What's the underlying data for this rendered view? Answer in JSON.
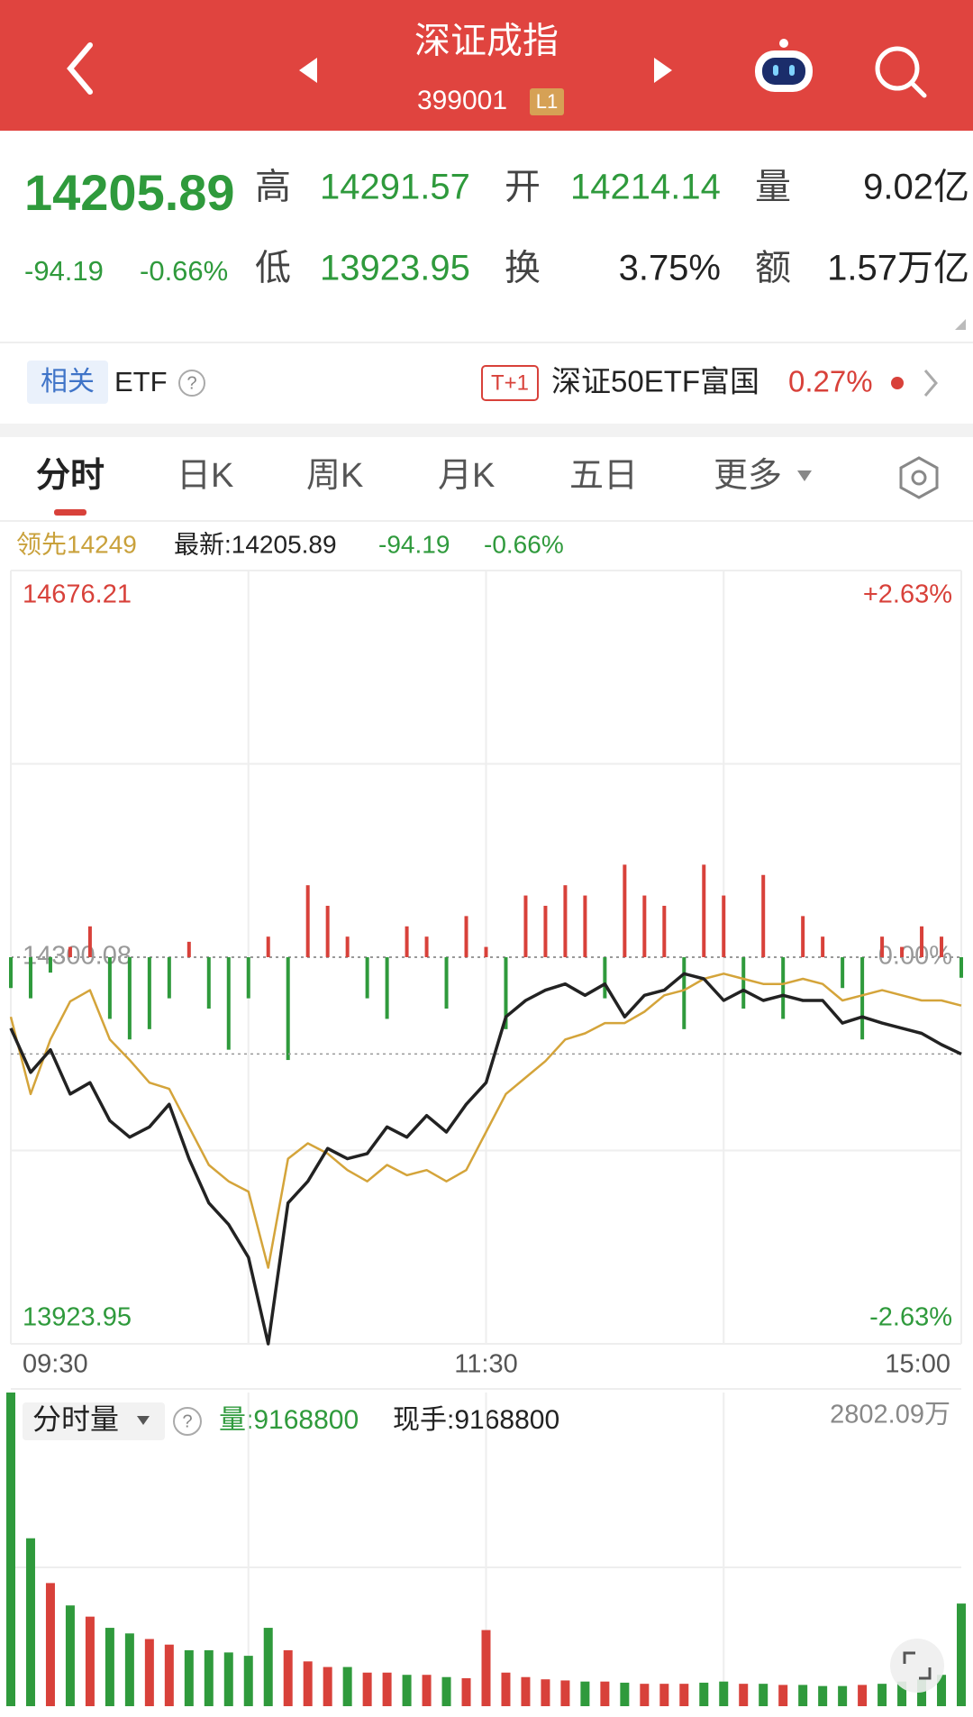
{
  "header": {
    "title": "深证成指",
    "code": "399001",
    "badge": "L1"
  },
  "quote": {
    "price": "14205.89",
    "change": "-94.19",
    "change_pct": "-0.66%",
    "high_label": "高",
    "high": "14291.57",
    "open_label": "开",
    "open": "14214.14",
    "volume_label": "量",
    "volume": "9.02亿",
    "low_label": "低",
    "low": "13923.95",
    "turnover_label": "换",
    "turnover": "3.75%",
    "amount_label": "额",
    "amount": "1.57万亿"
  },
  "etf": {
    "tag": "相关",
    "label": "ETF",
    "help": "?",
    "badge": "T+1",
    "name": "深证50ETF富国",
    "change": "0.27%"
  },
  "tabs": [
    "分时",
    "日K",
    "周K",
    "月K",
    "五日",
    "更多"
  ],
  "info": {
    "lead": "领先14249",
    "latest": "最新:14205.89",
    "change": "-94.19",
    "change_pct": "-0.66%"
  },
  "chart_data": [
    {
      "type": "line",
      "x": [
        0,
        5,
        10,
        15,
        20,
        25,
        30,
        35,
        40,
        45,
        50,
        55,
        60,
        65,
        70,
        75,
        80,
        85,
        90,
        95,
        100,
        105,
        110,
        115,
        120,
        125,
        130,
        135,
        140,
        145,
        150,
        155,
        160,
        165,
        170,
        175,
        180,
        185,
        190,
        195,
        200,
        205,
        210,
        215,
        220,
        225,
        230,
        235,
        240
      ],
      "xlim": [
        0,
        240
      ],
      "xticks": [
        {
          "value": 0,
          "label": "09:30"
        },
        {
          "value": 120,
          "label": "11:30"
        },
        {
          "value": 240,
          "label": "15:00"
        }
      ],
      "ylim": [
        13923.95,
        14676.21
      ],
      "yticks": [
        14676.21,
        14300.08,
        13923.95
      ],
      "y2lim": [
        -2.63,
        2.63
      ],
      "y2ticks": [
        {
          "value": 2.63,
          "label": "+2.63%"
        },
        {
          "value": 0,
          "label": "0.00%"
        },
        {
          "value": -2.63,
          "label": "-2.63%"
        }
      ],
      "grid": true,
      "series": [
        {
          "color": "#222222",
          "values": [
            14231,
            14188,
            14210,
            14167,
            14178,
            14141,
            14125,
            14135,
            14157,
            14104,
            14061,
            14040,
            14008,
            13923.95,
            14061,
            14082,
            14114,
            14104,
            14109,
            14135,
            14125,
            14146,
            14130,
            14157,
            14178,
            14242,
            14258,
            14268,
            14274,
            14263,
            14274,
            14242,
            14263,
            14268,
            14284,
            14279,
            14258,
            14268,
            14258,
            14263,
            14258,
            14258,
            14236,
            14242,
            14236,
            14231,
            14226,
            14215,
            14205.89
          ]
        },
        {
          "color": "#d4a43a",
          "values": [
            14242,
            14167,
            14220,
            14257,
            14268,
            14220,
            14200,
            14178,
            14172,
            14135,
            14098,
            14082,
            14072,
            13998,
            14104,
            14119,
            14109,
            14093,
            14082,
            14098,
            14088,
            14093,
            14082,
            14093,
            14130,
            14167,
            14183,
            14199,
            14220,
            14226,
            14236,
            14236,
            14247,
            14263,
            14268,
            14279,
            14284,
            14279,
            14274,
            14274,
            14279,
            14274,
            14258,
            14263,
            14268,
            14263,
            14258,
            14258,
            14253
          ]
        }
      ],
      "bars": {
        "up_color": "#d8413a",
        "down_color": "#2f9a3c",
        "values": [
          -30,
          -40,
          -15,
          10,
          30,
          -60,
          -80,
          -70,
          -40,
          15,
          -50,
          -90,
          -40,
          20,
          -100,
          70,
          50,
          20,
          -40,
          -60,
          30,
          20,
          -50,
          40,
          10,
          -70,
          60,
          50,
          70,
          60,
          -40,
          90,
          60,
          50,
          -70,
          90,
          60,
          -50,
          80,
          -60,
          40,
          20,
          -30,
          -80,
          20,
          10,
          30,
          20,
          -20
        ]
      }
    },
    {
      "type": "bar",
      "title": "分时量",
      "help": "?",
      "annotations": [
        "量:9168800",
        "现手:9168800"
      ],
      "x": [
        0,
        5,
        10,
        15,
        20,
        25,
        30,
        35,
        40,
        45,
        50,
        55,
        60,
        65,
        70,
        75,
        80,
        85,
        90,
        95,
        100,
        105,
        110,
        115,
        120,
        125,
        130,
        135,
        140,
        145,
        150,
        155,
        160,
        165,
        170,
        175,
        180,
        185,
        190,
        195,
        200,
        205,
        210,
        215,
        220,
        225,
        230,
        235,
        240
      ],
      "xlim": [
        0,
        240
      ],
      "ylim": [
        0,
        28020900
      ],
      "yticks": [
        {
          "value": 28020900,
          "label": "2802.09万"
        }
      ],
      "up_color": "#d8413a",
      "down_color": "#2f9a3c",
      "values": [
        28020900,
        15000000,
        11000000,
        9000000,
        8000000,
        7000000,
        6500000,
        6000000,
        5500000,
        5000000,
        5000000,
        4800000,
        4500000,
        7000000,
        5000000,
        4000000,
        3500000,
        3500000,
        3000000,
        3000000,
        2800000,
        2800000,
        2600000,
        2500000,
        6800000,
        3000000,
        2600000,
        2400000,
        2300000,
        2200000,
        2200000,
        2100000,
        2000000,
        2000000,
        2000000,
        2100000,
        2200000,
        2000000,
        2000000,
        1900000,
        1900000,
        1800000,
        1800000,
        1900000,
        2000000,
        2200000,
        2400000,
        2800000,
        9168800
      ],
      "directions": [
        "down",
        "down",
        "up",
        "down",
        "up",
        "down",
        "down",
        "up",
        "up",
        "down",
        "down",
        "down",
        "down",
        "down",
        "up",
        "up",
        "up",
        "down",
        "up",
        "up",
        "down",
        "up",
        "down",
        "up",
        "up",
        "up",
        "up",
        "up",
        "up",
        "down",
        "up",
        "down",
        "up",
        "up",
        "up",
        "down",
        "down",
        "up",
        "down",
        "up",
        "down",
        "down",
        "down",
        "up",
        "down",
        "down",
        "down",
        "down",
        "down"
      ]
    }
  ]
}
